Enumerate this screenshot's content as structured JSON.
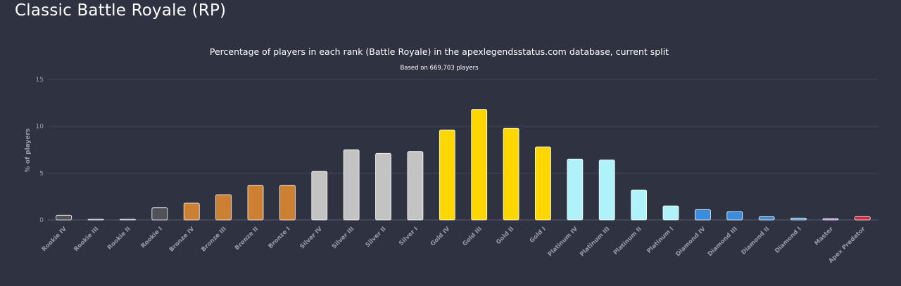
{
  "page": {
    "title": "Classic Battle Royale (RP)"
  },
  "chart_data": {
    "type": "bar",
    "title": "Percentage of players in each rank (Battle Royale) in the apexlegendsstatus.com database, current split",
    "subtitle": "Based on 669,703 players",
    "xlabel": "",
    "ylabel": "% of players",
    "ylim": [
      0,
      15
    ],
    "yticks": [
      0,
      5,
      10,
      15
    ],
    "grid": true,
    "categories": [
      "Rookie IV",
      "Rookie III",
      "Rookie II",
      "Rookie I",
      "Bronze IV",
      "Bronze III",
      "Bronze II",
      "Bronze I",
      "Silver IV",
      "Silver III",
      "Silver II",
      "Silver I",
      "Gold IV",
      "Gold III",
      "Gold II",
      "Gold I",
      "Platinum IV",
      "Platinum III",
      "Platinum II",
      "Platinum I",
      "Diamond IV",
      "Diamond III",
      "Diamond II",
      "Diamond I",
      "Master",
      "Apex Predator"
    ],
    "values": [
      0.5,
      0.05,
      0.05,
      1.3,
      1.8,
      2.7,
      3.7,
      3.7,
      5.2,
      7.5,
      7.1,
      7.3,
      9.6,
      11.8,
      9.8,
      7.8,
      6.5,
      6.4,
      3.2,
      1.5,
      1.1,
      0.9,
      0.35,
      0.2,
      0.15,
      0.35
    ],
    "colors": [
      "#505258",
      "#505258",
      "#505258",
      "#505258",
      "#cd7f32",
      "#cd7f32",
      "#cd7f32",
      "#cd7f32",
      "#c3c3c3",
      "#c3c3c3",
      "#c3c3c3",
      "#c3c3c3",
      "#ffd700",
      "#ffd700",
      "#ffd700",
      "#ffd700",
      "#b0f2fa",
      "#b0f2fa",
      "#b0f2fa",
      "#b0f2fa",
      "#3a8cdc",
      "#3a8cdc",
      "#3a8cdc",
      "#3a8cdc",
      "#a77fd4",
      "#d9233b"
    ]
  }
}
